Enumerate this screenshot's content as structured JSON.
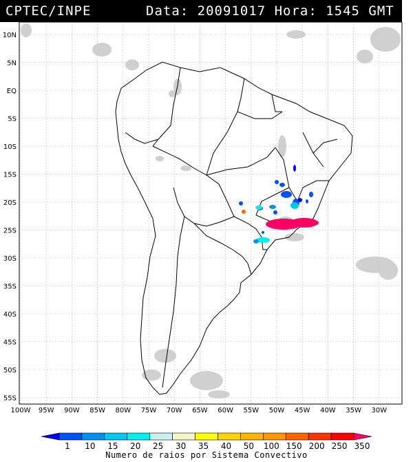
{
  "header": {
    "source": "CPTEC/INPE",
    "timestamp": "Data: 20091017 Hora: 1545 GMT"
  },
  "map": {
    "lat_labels": [
      "10N",
      "5N",
      "EQ",
      "5S",
      "10S",
      "15S",
      "20S",
      "25S",
      "30S",
      "35S",
      "40S",
      "45S",
      "50S",
      "55S"
    ],
    "lon_labels": [
      "100W",
      "95W",
      "90W",
      "85W",
      "80W",
      "75W",
      "70W",
      "65W",
      "60W",
      "55W",
      "50W",
      "45W",
      "40W",
      "35W",
      "30W"
    ],
    "region": "South America"
  },
  "legend": {
    "title": "Numero de raios por Sistema Convectivo",
    "ticks": [
      "1",
      "10",
      "15",
      "20",
      "25",
      "30",
      "35",
      "40",
      "50",
      "100",
      "150",
      "200",
      "250",
      "350"
    ],
    "colors": [
      "#0000ff",
      "#0050ff",
      "#0090f0",
      "#00c8f0",
      "#00f0f0",
      "#c8f0f0",
      "#f5f5c8",
      "#ffff00",
      "#ffd200",
      "#ffb400",
      "#ff9600",
      "#ff6400",
      "#ff3200",
      "#ff0000",
      "#ff0064"
    ]
  }
}
